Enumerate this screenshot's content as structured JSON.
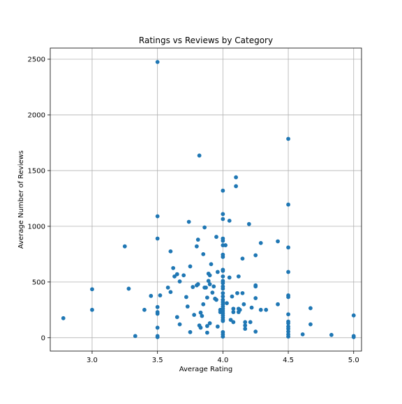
{
  "chart_data": {
    "type": "scatter",
    "title": "Ratings vs Reviews by Category",
    "xlabel": "Average Rating",
    "ylabel": "Average Number of Reviews",
    "xlim": [
      2.68,
      5.06
    ],
    "ylim": [
      -120,
      2600
    ],
    "xticks": [
      "3.0",
      "3.5",
      "4.0",
      "4.5",
      "5.0"
    ],
    "yticks": [
      "0",
      "500",
      "1000",
      "1500",
      "2000",
      "2500"
    ],
    "grid": true,
    "marker_color": "#1f77b4",
    "points": [
      [
        2.78,
        175
      ],
      [
        3.0,
        435
      ],
      [
        3.0,
        250
      ],
      [
        3.25,
        820
      ],
      [
        3.28,
        440
      ],
      [
        3.33,
        15
      ],
      [
        3.4,
        250
      ],
      [
        3.45,
        375
      ],
      [
        3.5,
        2475
      ],
      [
        3.5,
        1090
      ],
      [
        3.5,
        890
      ],
      [
        3.5,
        275
      ],
      [
        3.5,
        230
      ],
      [
        3.5,
        215
      ],
      [
        3.5,
        90
      ],
      [
        3.5,
        15
      ],
      [
        3.5,
        5
      ],
      [
        3.52,
        380
      ],
      [
        3.58,
        450
      ],
      [
        3.6,
        775
      ],
      [
        3.6,
        410
      ],
      [
        3.62,
        625
      ],
      [
        3.63,
        550
      ],
      [
        3.65,
        570
      ],
      [
        3.65,
        185
      ],
      [
        3.67,
        505
      ],
      [
        3.67,
        120
      ],
      [
        3.7,
        560
      ],
      [
        3.72,
        365
      ],
      [
        3.73,
        280
      ],
      [
        3.74,
        1040
      ],
      [
        3.75,
        640
      ],
      [
        3.75,
        50
      ],
      [
        3.77,
        455
      ],
      [
        3.78,
        205
      ],
      [
        3.8,
        820
      ],
      [
        3.8,
        470
      ],
      [
        3.81,
        880
      ],
      [
        3.81,
        480
      ],
      [
        3.82,
        1635
      ],
      [
        3.82,
        110
      ],
      [
        3.83,
        225
      ],
      [
        3.83,
        90
      ],
      [
        3.84,
        195
      ],
      [
        3.85,
        750
      ],
      [
        3.85,
        300
      ],
      [
        3.86,
        990
      ],
      [
        3.86,
        450
      ],
      [
        3.87,
        450
      ],
      [
        3.88,
        360
      ],
      [
        3.88,
        45
      ],
      [
        3.88,
        105
      ],
      [
        3.89,
        575
      ],
      [
        3.89,
        510
      ],
      [
        3.9,
        560
      ],
      [
        3.9,
        480
      ],
      [
        3.9,
        130
      ],
      [
        3.91,
        660
      ],
      [
        3.92,
        405
      ],
      [
        3.93,
        460
      ],
      [
        3.94,
        350
      ],
      [
        3.95,
        905
      ],
      [
        3.95,
        340
      ],
      [
        3.96,
        590
      ],
      [
        3.96,
        100
      ],
      [
        3.98,
        250
      ],
      [
        3.98,
        230
      ],
      [
        4.0,
        1320
      ],
      [
        4.0,
        1110
      ],
      [
        4.0,
        1065
      ],
      [
        4.0,
        890
      ],
      [
        4.0,
        870
      ],
      [
        4.0,
        830
      ],
      [
        4.0,
        745
      ],
      [
        4.0,
        725
      ],
      [
        4.0,
        610
      ],
      [
        4.0,
        600
      ],
      [
        4.0,
        550
      ],
      [
        4.0,
        510
      ],
      [
        4.0,
        490
      ],
      [
        4.0,
        460
      ],
      [
        4.0,
        440
      ],
      [
        4.0,
        400
      ],
      [
        4.0,
        370
      ],
      [
        4.0,
        340
      ],
      [
        4.0,
        320
      ],
      [
        4.0,
        300
      ],
      [
        4.0,
        280
      ],
      [
        4.0,
        260
      ],
      [
        4.0,
        240
      ],
      [
        4.0,
        220
      ],
      [
        4.0,
        200
      ],
      [
        4.0,
        180
      ],
      [
        4.0,
        160
      ],
      [
        4.0,
        150
      ],
      [
        4.0,
        50
      ],
      [
        4.0,
        30
      ],
      [
        4.0,
        10
      ],
      [
        4.02,
        830
      ],
      [
        4.03,
        310
      ],
      [
        4.05,
        1050
      ],
      [
        4.05,
        540
      ],
      [
        4.06,
        160
      ],
      [
        4.07,
        370
      ],
      [
        4.08,
        260
      ],
      [
        4.08,
        230
      ],
      [
        4.08,
        140
      ],
      [
        4.1,
        1440
      ],
      [
        4.1,
        1360
      ],
      [
        4.11,
        400
      ],
      [
        4.12,
        550
      ],
      [
        4.12,
        260
      ],
      [
        4.12,
        230
      ],
      [
        4.13,
        250
      ],
      [
        4.15,
        710
      ],
      [
        4.15,
        400
      ],
      [
        4.16,
        300
      ],
      [
        4.17,
        140
      ],
      [
        4.17,
        110
      ],
      [
        4.17,
        80
      ],
      [
        4.2,
        1020
      ],
      [
        4.21,
        140
      ],
      [
        4.22,
        270
      ],
      [
        4.25,
        740
      ],
      [
        4.25,
        470
      ],
      [
        4.25,
        460
      ],
      [
        4.25,
        355
      ],
      [
        4.25,
        55
      ],
      [
        4.29,
        850
      ],
      [
        4.29,
        250
      ],
      [
        4.33,
        250
      ],
      [
        4.42,
        865
      ],
      [
        4.42,
        300
      ],
      [
        4.5,
        1785
      ],
      [
        4.5,
        1195
      ],
      [
        4.5,
        810
      ],
      [
        4.5,
        590
      ],
      [
        4.5,
        380
      ],
      [
        4.5,
        365
      ],
      [
        4.5,
        210
      ],
      [
        4.5,
        145
      ],
      [
        4.5,
        130
      ],
      [
        4.5,
        100
      ],
      [
        4.5,
        80
      ],
      [
        4.5,
        55
      ],
      [
        4.5,
        30
      ],
      [
        4.5,
        10
      ],
      [
        4.61,
        30
      ],
      [
        4.67,
        265
      ],
      [
        4.67,
        120
      ],
      [
        4.83,
        25
      ],
      [
        5.0,
        200
      ],
      [
        5.0,
        15
      ],
      [
        5.0,
        5
      ]
    ]
  }
}
